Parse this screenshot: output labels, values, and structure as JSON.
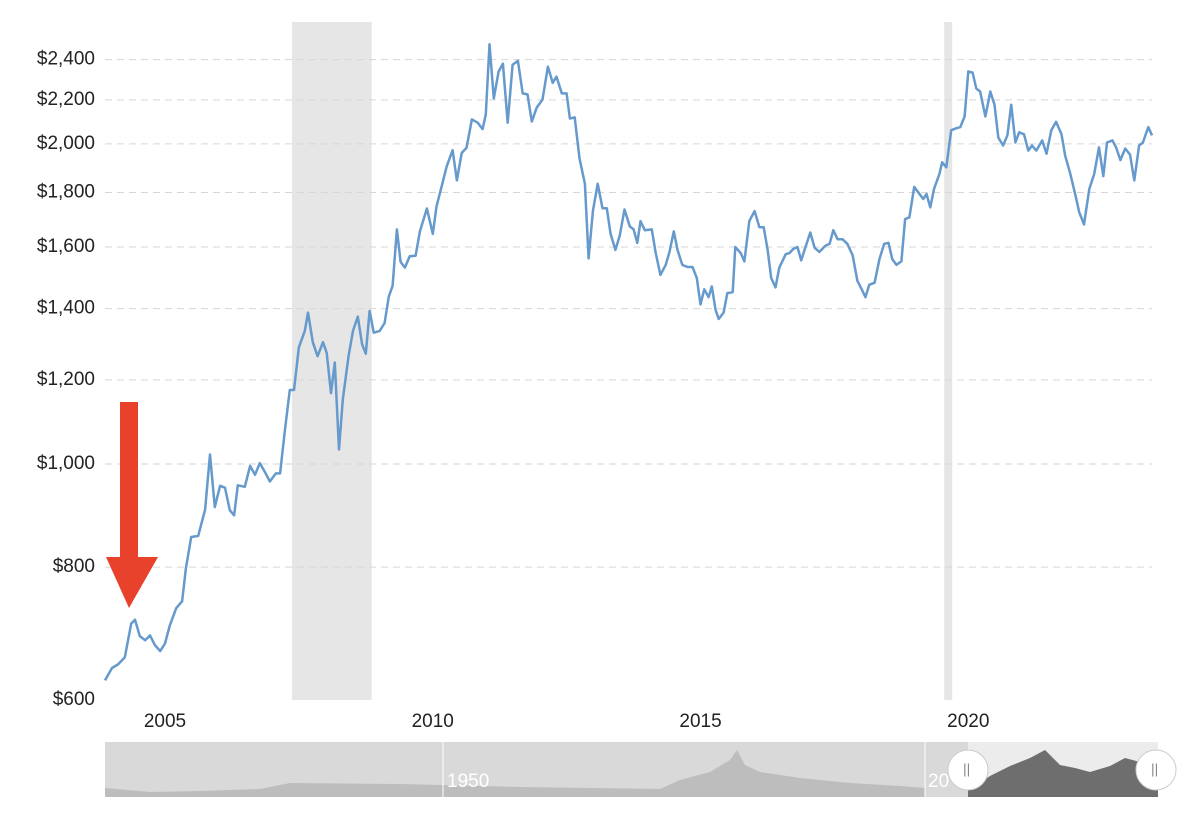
{
  "chart_data": {
    "type": "line",
    "log_scale_y": true,
    "grid": true,
    "xlim": [
      2003.88,
      2023.43
    ],
    "xticks": [
      2005,
      2010,
      2015,
      2020
    ],
    "ylim": [
      600,
      2604
    ],
    "yticks": [
      {
        "value": 600,
        "label": "$600"
      },
      {
        "value": 800,
        "label": "$800"
      },
      {
        "value": 1000,
        "label": "$1,000"
      },
      {
        "value": 1200,
        "label": "$1,200"
      },
      {
        "value": 1400,
        "label": "$1,400"
      },
      {
        "value": 1600,
        "label": "$1,600"
      },
      {
        "value": 1800,
        "label": "$1,800"
      },
      {
        "value": 2000,
        "label": "$2,000"
      },
      {
        "value": 2200,
        "label": "$2,200"
      },
      {
        "value": 2400,
        "label": "$2,400"
      }
    ],
    "shaded_ranges": [
      [
        2007.37,
        2008.86
      ],
      [
        2019.55,
        2019.7
      ]
    ],
    "navigator_labels": [
      "1950",
      "20"
    ],
    "x": [
      2003.88,
      2004.01,
      2004.12,
      2004.25,
      2004.37,
      2004.44,
      2004.53,
      2004.63,
      2004.72,
      2004.81,
      2004.91,
      2005.0,
      2005.09,
      2005.21,
      2005.32,
      2005.39,
      2005.49,
      2005.62,
      2005.75,
      2005.84,
      2005.93,
      2006.03,
      2006.12,
      2006.21,
      2006.29,
      2006.36,
      2006.49,
      2006.59,
      2006.68,
      2006.77,
      2006.87,
      2006.96,
      2007.07,
      2007.15,
      2007.24,
      2007.33,
      2007.41,
      2007.5,
      2007.61,
      2007.67,
      2007.76,
      2007.85,
      2007.95,
      2008.02,
      2008.1,
      2008.17,
      2008.25,
      2008.32,
      2008.43,
      2008.51,
      2008.6,
      2008.68,
      2008.75,
      2008.82,
      2008.9,
      2009.01,
      2009.1,
      2009.18,
      2009.25,
      2009.33,
      2009.4,
      2009.48,
      2009.57,
      2009.68,
      2009.76,
      2009.89,
      2010.0,
      2010.07,
      2010.17,
      2010.26,
      2010.37,
      2010.45,
      2010.54,
      2010.63,
      2010.73,
      2010.84,
      2010.93,
      2010.99,
      2011.06,
      2011.14,
      2011.23,
      2011.31,
      2011.4,
      2011.49,
      2011.59,
      2011.68,
      2011.77,
      2011.85,
      2011.94,
      2012.05,
      2012.15,
      2012.24,
      2012.31,
      2012.41,
      2012.5,
      2012.56,
      2012.65,
      2012.74,
      2012.84,
      2012.91,
      2012.99,
      2013.08,
      2013.17,
      2013.25,
      2013.32,
      2013.41,
      2013.49,
      2013.58,
      2013.68,
      2013.75,
      2013.82,
      2013.88,
      2013.96,
      2014.09,
      2014.16,
      2014.25,
      2014.35,
      2014.42,
      2014.5,
      2014.57,
      2014.66,
      2014.76,
      2014.85,
      2014.93,
      2015.0,
      2015.07,
      2015.15,
      2015.21,
      2015.28,
      2015.34,
      2015.43,
      2015.5,
      2015.6,
      2015.65,
      2015.75,
      2015.82,
      2015.91,
      2016.01,
      2016.1,
      2016.18,
      2016.25,
      2016.32,
      2016.4,
      2016.47,
      2016.59,
      2016.66,
      2016.73,
      2016.81,
      2016.88,
      2016.96,
      2017.05,
      2017.13,
      2017.22,
      2017.33,
      2017.41,
      2017.48,
      2017.56,
      2017.65,
      2017.74,
      2017.84,
      2017.93,
      2018.0,
      2018.08,
      2018.15,
      2018.25,
      2018.34,
      2018.43,
      2018.51,
      2018.58,
      2018.66,
      2018.75,
      2018.82,
      2018.9,
      2018.99,
      2019.09,
      2019.16,
      2019.22,
      2019.29,
      2019.36,
      2019.46,
      2019.51,
      2019.59,
      2019.68,
      2019.78,
      2019.85,
      2019.93,
      2020.0,
      2020.08,
      2020.15,
      2020.22,
      2020.32,
      2020.41,
      2020.49,
      2020.56,
      2020.65,
      2020.73,
      2020.8,
      2020.88,
      2020.95,
      2021.04,
      2021.12,
      2021.19,
      2021.27,
      2021.38,
      2021.46,
      2021.55,
      2021.64,
      2021.74,
      2021.81,
      2021.9,
      2022.0,
      2022.07,
      2022.16,
      2022.26,
      2022.35,
      2022.44,
      2022.52,
      2022.59,
      2022.69,
      2022.76,
      2022.84,
      2022.93,
      2023.02,
      2023.1,
      2023.19,
      2023.26,
      2023.36,
      2023.43
    ],
    "series": [
      {
        "color": "#6699cc",
        "values": [
          626,
          643,
          648,
          658,
          708,
          714,
          689,
          683,
          690,
          676,
          667,
          678,
          705,
          732,
          743,
          798,
          854,
          856,
          906,
          1021,
          911,
          954,
          950,
          905,
          895,
          955,
          952,
          996,
          977,
          1002,
          982,
          963,
          980,
          980,
          1076,
          1174,
          1174,
          1288,
          1334,
          1388,
          1302,
          1263,
          1302,
          1272,
          1166,
          1246,
          1032,
          1150,
          1266,
          1334,
          1376,
          1296,
          1270,
          1393,
          1329,
          1334,
          1357,
          1437,
          1471,
          1662,
          1549,
          1530,
          1568,
          1570,
          1655,
          1739,
          1646,
          1747,
          1828,
          1905,
          1973,
          1848,
          1961,
          1983,
          2109,
          2094,
          2065,
          2132,
          2481,
          2207,
          2339,
          2379,
          2094,
          2374,
          2394,
          2231,
          2226,
          2099,
          2163,
          2202,
          2364,
          2283,
          2313,
          2231,
          2231,
          2113,
          2118,
          1938,
          1835,
          1561,
          1729,
          1835,
          1740,
          1740,
          1646,
          1590,
          1639,
          1735,
          1673,
          1662,
          1614,
          1692,
          1659,
          1662,
          1583,
          1506,
          1539,
          1583,
          1655,
          1590,
          1539,
          1532,
          1532,
          1496,
          1413,
          1460,
          1435,
          1469,
          1397,
          1369,
          1388,
          1448,
          1451,
          1600,
          1579,
          1551,
          1692,
          1729,
          1670,
          1670,
          1593,
          1496,
          1466,
          1530,
          1575,
          1579,
          1593,
          1600,
          1554,
          1600,
          1651,
          1597,
          1583,
          1604,
          1611,
          1659,
          1627,
          1627,
          1611,
          1572,
          1487,
          1463,
          1435,
          1474,
          1481,
          1558,
          1611,
          1614,
          1558,
          1539,
          1551,
          1699,
          1706,
          1822,
          1794,
          1775,
          1794,
          1743,
          1814,
          1874,
          1922,
          1901,
          2060,
          2069,
          2074,
          2122,
          2340,
          2334,
          2255,
          2240,
          2122,
          2240,
          2177,
          2028,
          1993,
          2037,
          2177,
          2006,
          2051,
          2042,
          1971,
          1993,
          1971,
          2015,
          1958,
          2060,
          2098,
          2042,
          1949,
          1878,
          1790,
          1725,
          1680,
          1814,
          1874,
          1985,
          1865,
          2006,
          2015,
          1985,
          1931,
          1980,
          1954,
          1848,
          1993,
          2006,
          2074,
          2037
        ]
      }
    ]
  }
}
